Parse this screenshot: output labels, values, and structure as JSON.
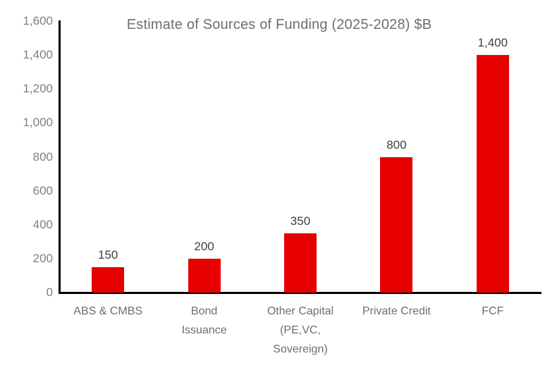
{
  "page": {
    "background": "#ffffff"
  },
  "chart_data": {
    "type": "bar",
    "title": "Estimate of Sources of Funding (2025-2028) $B",
    "categories": [
      "ABS & CMBS",
      "Bond Issuance",
      "Other Capital (PE,VC, Sovereign)",
      "Private Credit",
      "FCF"
    ],
    "category_lines": [
      [
        "ABS & CMBS"
      ],
      [
        "Bond",
        "Issuance"
      ],
      [
        "Other Capital",
        "(PE,VC,",
        "Sovereign)"
      ],
      [
        "Private Credit"
      ],
      [
        "FCF"
      ]
    ],
    "values": [
      150,
      200,
      350,
      800,
      1400
    ],
    "data_labels": [
      "150",
      "200",
      "350",
      "800",
      "1,400"
    ],
    "xlabel": "",
    "ylabel": "",
    "ylim": [
      0,
      1600
    ],
    "ytick_step": 200,
    "ytick_labels": [
      "0",
      "200",
      "400",
      "600",
      "800",
      "1,000",
      "1,200",
      "1,400",
      "1,600"
    ],
    "grid": false,
    "legend": "none",
    "colors": {
      "bar": "#e60000",
      "axis": "#000000",
      "title": "#6e6e6e",
      "tick_label": "#7f7f7f",
      "value_label": "#404040",
      "category_label": "#6e6e6e"
    }
  }
}
